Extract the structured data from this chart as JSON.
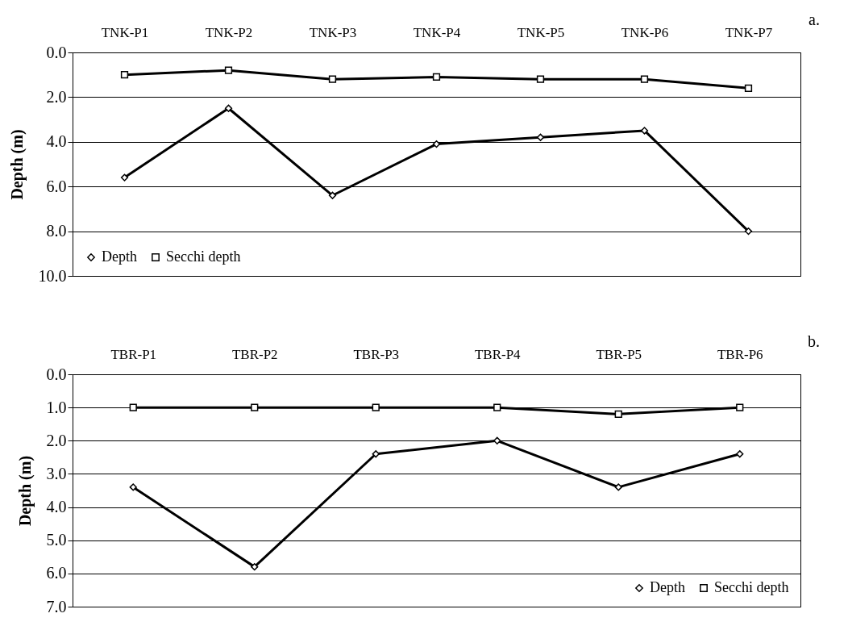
{
  "chart_data": [
    {
      "type": "line",
      "title": "a.",
      "ylabel": "Depth (m)",
      "categories": [
        "TNK-P1",
        "TNK-P2",
        "TNK-P3",
        "TNK-P4",
        "TNK-P5",
        "TNK-P6",
        "TNK-P7"
      ],
      "series": [
        {
          "name": "Depth",
          "color": "#000000",
          "marker": "diamond",
          "values": [
            5.6,
            2.5,
            6.4,
            4.1,
            3.8,
            3.5,
            8.0
          ]
        },
        {
          "name": "Secchi depth",
          "color": "#000000",
          "marker": "square",
          "values": [
            1.0,
            0.8,
            1.2,
            1.1,
            1.2,
            1.2,
            1.6
          ]
        }
      ],
      "ylim": [
        10,
        0
      ],
      "yticks": [
        {
          "value": 0,
          "label": "0.0"
        },
        {
          "value": 2,
          "label": "2.0"
        },
        {
          "value": 4,
          "label": "4.0"
        },
        {
          "value": 6,
          "label": "6.0"
        },
        {
          "value": 8,
          "label": "8.0"
        },
        {
          "value": 10,
          "label": "10.0"
        }
      ],
      "grid": "y",
      "legend": "bottom left",
      "line_style": "solid"
    },
    {
      "type": "line",
      "title": "b.",
      "ylabel": "Depth (m)",
      "categories": [
        "TBR-P1",
        "TBR-P2",
        "TBR-P3",
        "TBR-P4",
        "TBR-P5",
        "TBR-P6"
      ],
      "series": [
        {
          "name": "Depth",
          "color": "#000000",
          "marker": "diamond",
          "values": [
            3.4,
            5.8,
            2.4,
            2.0,
            3.4,
            2.4
          ]
        },
        {
          "name": "Secchi depth",
          "color": "#000000",
          "marker": "square",
          "values": [
            1.0,
            1.0,
            1.0,
            1.0,
            1.2,
            1.0
          ]
        }
      ],
      "ylim": [
        7,
        0
      ],
      "yticks": [
        {
          "value": 0,
          "label": "0.0"
        },
        {
          "value": 1,
          "label": "1.0"
        },
        {
          "value": 2,
          "label": "2.0"
        },
        {
          "value": 3,
          "label": "3.0"
        },
        {
          "value": 4,
          "label": "4.0"
        },
        {
          "value": 5,
          "label": "5.0"
        },
        {
          "value": 6,
          "label": "6.0"
        },
        {
          "value": 7,
          "label": "7.0"
        }
      ],
      "grid": "y",
      "legend": "bottom right",
      "line_style": "solid"
    }
  ]
}
